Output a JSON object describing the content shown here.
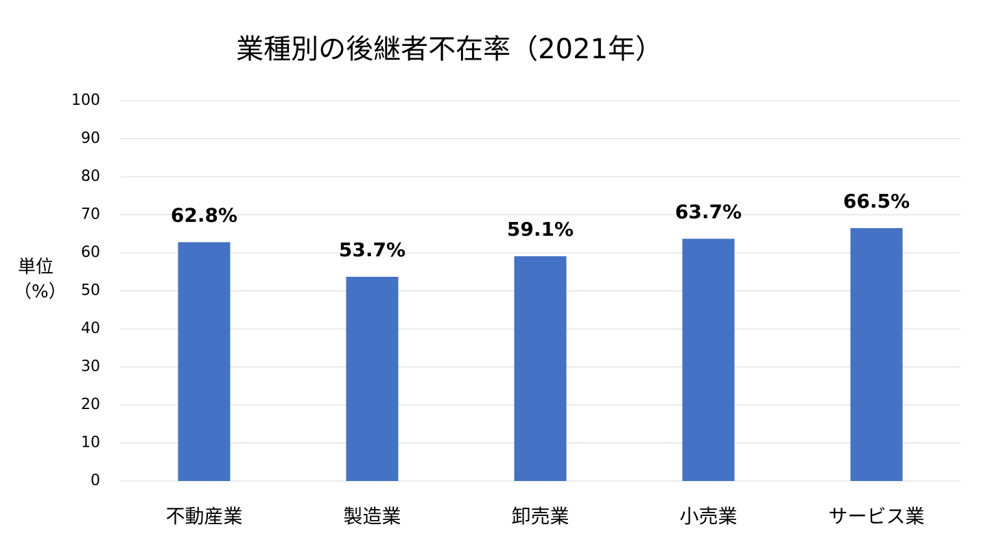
{
  "chart_data": {
    "type": "bar",
    "title": "業種別の後継者不在率（2021年）",
    "y_label": "単位（%）",
    "categories": [
      "不動産業",
      "製造業",
      "卸売業",
      "小売業",
      "サービス業"
    ],
    "values": [
      62.8,
      53.7,
      59.1,
      63.7,
      66.5
    ],
    "value_labels": [
      "62.8%",
      "53.7%",
      "59.1%",
      "63.7%",
      "66.5%"
    ],
    "color": "#4472c4",
    "ylim": [
      0,
      100
    ],
    "yticks": [
      0,
      10,
      20,
      30,
      40,
      50,
      60,
      70,
      80,
      90,
      100
    ],
    "grid": true
  }
}
